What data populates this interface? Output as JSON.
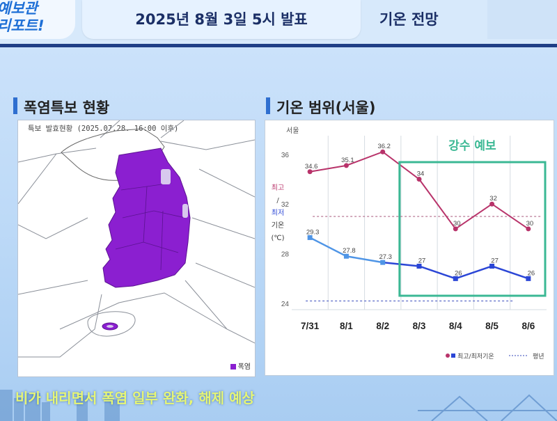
{
  "header": {
    "logo_line1": "예보관",
    "logo_line2": "리포트!",
    "date": "2025년 8월 3일 5시 발표",
    "title": "기온 전망"
  },
  "map_section": {
    "heading": "폭염특보 현황",
    "caption": "특보 발효현황 (2025.07.28. 16:00 이후)",
    "legend": "폭염",
    "color": "#8b1fd0"
  },
  "chart_section": {
    "heading": "기온 범위(서울)"
  },
  "chart_data": {
    "type": "line",
    "location_label": "서울",
    "ylabel": [
      "최고",
      "/",
      "최저",
      "기온",
      "(℃)"
    ],
    "categories": [
      "7/31",
      "8/1",
      "8/2",
      "8/3",
      "8/4",
      "8/5",
      "8/6"
    ],
    "ylim": [
      23.5,
      37.5
    ],
    "yticks": [
      24,
      28,
      32,
      36
    ],
    "series": [
      {
        "name": "최고/최저기온",
        "role": "max",
        "color": "#b8336a",
        "values": [
          34.6,
          35.1,
          36.2,
          34,
          30,
          32,
          30
        ],
        "labels": [
          "34.6",
          "35.1",
          "36.2",
          "34",
          "30",
          "32",
          "30"
        ]
      },
      {
        "role": "min",
        "color": "#2b46d6",
        "values": [
          29.3,
          27.8,
          27.3,
          27,
          26,
          27,
          26
        ],
        "labels": [
          "29.3",
          "27.8",
          "27.3",
          "27",
          "26",
          "27",
          "26"
        ]
      }
    ],
    "normal": {
      "name": "평년",
      "max": 31,
      "min": 24.2
    },
    "highlight": {
      "label": "강수 예보",
      "from": "8/3",
      "to": "8/6",
      "color": "#3bb894"
    },
    "legend": [
      {
        "label": "최고/최저기온",
        "kind": "marker"
      },
      {
        "label": "평년",
        "kind": "dotted"
      }
    ]
  },
  "bottom_caption": "비가 내리면서 폭염 일부 완화, 해제 예상"
}
